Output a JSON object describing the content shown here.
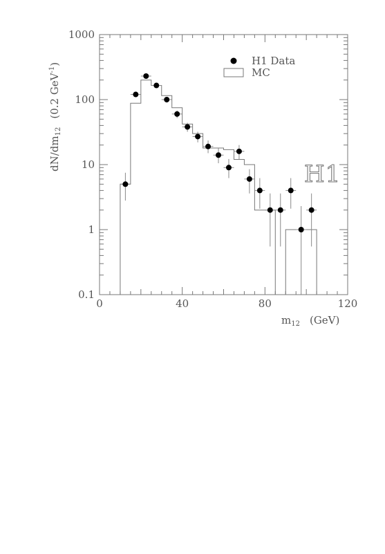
{
  "chart_data": {
    "type": "scatter",
    "xlabel": "m",
    "xlabel_sub": "12",
    "xlabel_unit": "(GeV)",
    "ylabel": "dN/dm",
    "ylabel_sub": "12",
    "ylabel_unit_open": "(0.2 GeV",
    "ylabel_unit_sup": "-1",
    "ylabel_unit_close": ")",
    "xlim": [
      0,
      120
    ],
    "ylim": [
      0.1,
      1000
    ],
    "yscale": "log",
    "grid": false,
    "legend_position": "top-right",
    "x_ticks": [
      {
        "value": 0,
        "label": "0"
      },
      {
        "value": 40,
        "label": "40"
      },
      {
        "value": 80,
        "label": "80"
      },
      {
        "value": 120,
        "label": "120"
      }
    ],
    "y_ticks": [
      {
        "value": 0.1,
        "label": "0.1"
      },
      {
        "value": 1,
        "label": "1"
      },
      {
        "value": 10,
        "label": "10"
      },
      {
        "value": 100,
        "label": "100"
      },
      {
        "value": 1000,
        "label": "1000"
      }
    ],
    "series": [
      {
        "name": "H1 Data",
        "kind": "points",
        "color": "#000000",
        "points": [
          {
            "x": 12.5,
            "y": 5,
            "ylo": 2.8,
            "yhi": 7.5
          },
          {
            "x": 17.5,
            "y": 120,
            "ylo": 110,
            "yhi": 131
          },
          {
            "x": 22.5,
            "y": 230,
            "ylo": 215,
            "yhi": 245
          },
          {
            "x": 27.5,
            "y": 165,
            "ylo": 152,
            "yhi": 178
          },
          {
            "x": 32.5,
            "y": 100,
            "ylo": 90,
            "yhi": 110
          },
          {
            "x": 37.5,
            "y": 60,
            "ylo": 52,
            "yhi": 68
          },
          {
            "x": 42.5,
            "y": 38,
            "ylo": 32,
            "yhi": 44
          },
          {
            "x": 47.5,
            "y": 27,
            "ylo": 22,
            "yhi": 32
          },
          {
            "x": 52.5,
            "y": 19,
            "ylo": 15,
            "yhi": 23.5
          },
          {
            "x": 57.5,
            "y": 14,
            "ylo": 10.5,
            "yhi": 18
          },
          {
            "x": 62.5,
            "y": 9,
            "ylo": 6.2,
            "yhi": 12.2
          },
          {
            "x": 67.5,
            "y": 16,
            "ylo": 12,
            "yhi": 20
          },
          {
            "x": 72.5,
            "y": 6,
            "ylo": 3.6,
            "yhi": 8.5
          },
          {
            "x": 77.5,
            "y": 4,
            "ylo": 2.1,
            "yhi": 6.2
          },
          {
            "x": 82.5,
            "y": 2,
            "ylo": 0.55,
            "yhi": 3.6
          },
          {
            "x": 87.5,
            "y": 2,
            "ylo": 0.55,
            "yhi": 3.6
          },
          {
            "x": 92.5,
            "y": 4,
            "ylo": 2.1,
            "yhi": 6.2
          },
          {
            "x": 97.5,
            "y": 1,
            "ylo": 0.1,
            "yhi": 2.3
          },
          {
            "x": 102.5,
            "y": 2,
            "ylo": 0.55,
            "yhi": 3.6
          }
        ]
      },
      {
        "name": "MC",
        "kind": "histogram",
        "color": "#777777",
        "bins": [
          {
            "x0": 10,
            "x1": 15,
            "y": 5
          },
          {
            "x0": 15,
            "x1": 20,
            "y": 88
          },
          {
            "x0": 20,
            "x1": 25,
            "y": 200
          },
          {
            "x0": 25,
            "x1": 30,
            "y": 165
          },
          {
            "x0": 30,
            "x1": 35,
            "y": 115
          },
          {
            "x0": 35,
            "x1": 40,
            "y": 75
          },
          {
            "x0": 40,
            "x1": 45,
            "y": 42
          },
          {
            "x0": 45,
            "x1": 50,
            "y": 30
          },
          {
            "x0": 50,
            "x1": 55,
            "y": 18
          },
          {
            "x0": 55,
            "x1": 60,
            "y": 18
          },
          {
            "x0": 60,
            "x1": 65,
            "y": 17
          },
          {
            "x0": 65,
            "x1": 70,
            "y": 12
          },
          {
            "x0": 70,
            "x1": 75,
            "y": 10
          },
          {
            "x0": 75,
            "x1": 80,
            "y": 2
          },
          {
            "x0": 80,
            "x1": 85,
            "y": 2
          },
          {
            "x0": 85,
            "x1": 90,
            "y": 0.1
          },
          {
            "x0": 90,
            "x1": 95,
            "y": 1
          },
          {
            "x0": 95,
            "x1": 100,
            "y": 1
          },
          {
            "x0": 100,
            "x1": 105,
            "y": 1
          }
        ]
      }
    ],
    "legend": [
      {
        "label": "H1 Data",
        "marker": "dot"
      },
      {
        "label": "MC",
        "marker": "box"
      }
    ],
    "logo": "H1"
  }
}
